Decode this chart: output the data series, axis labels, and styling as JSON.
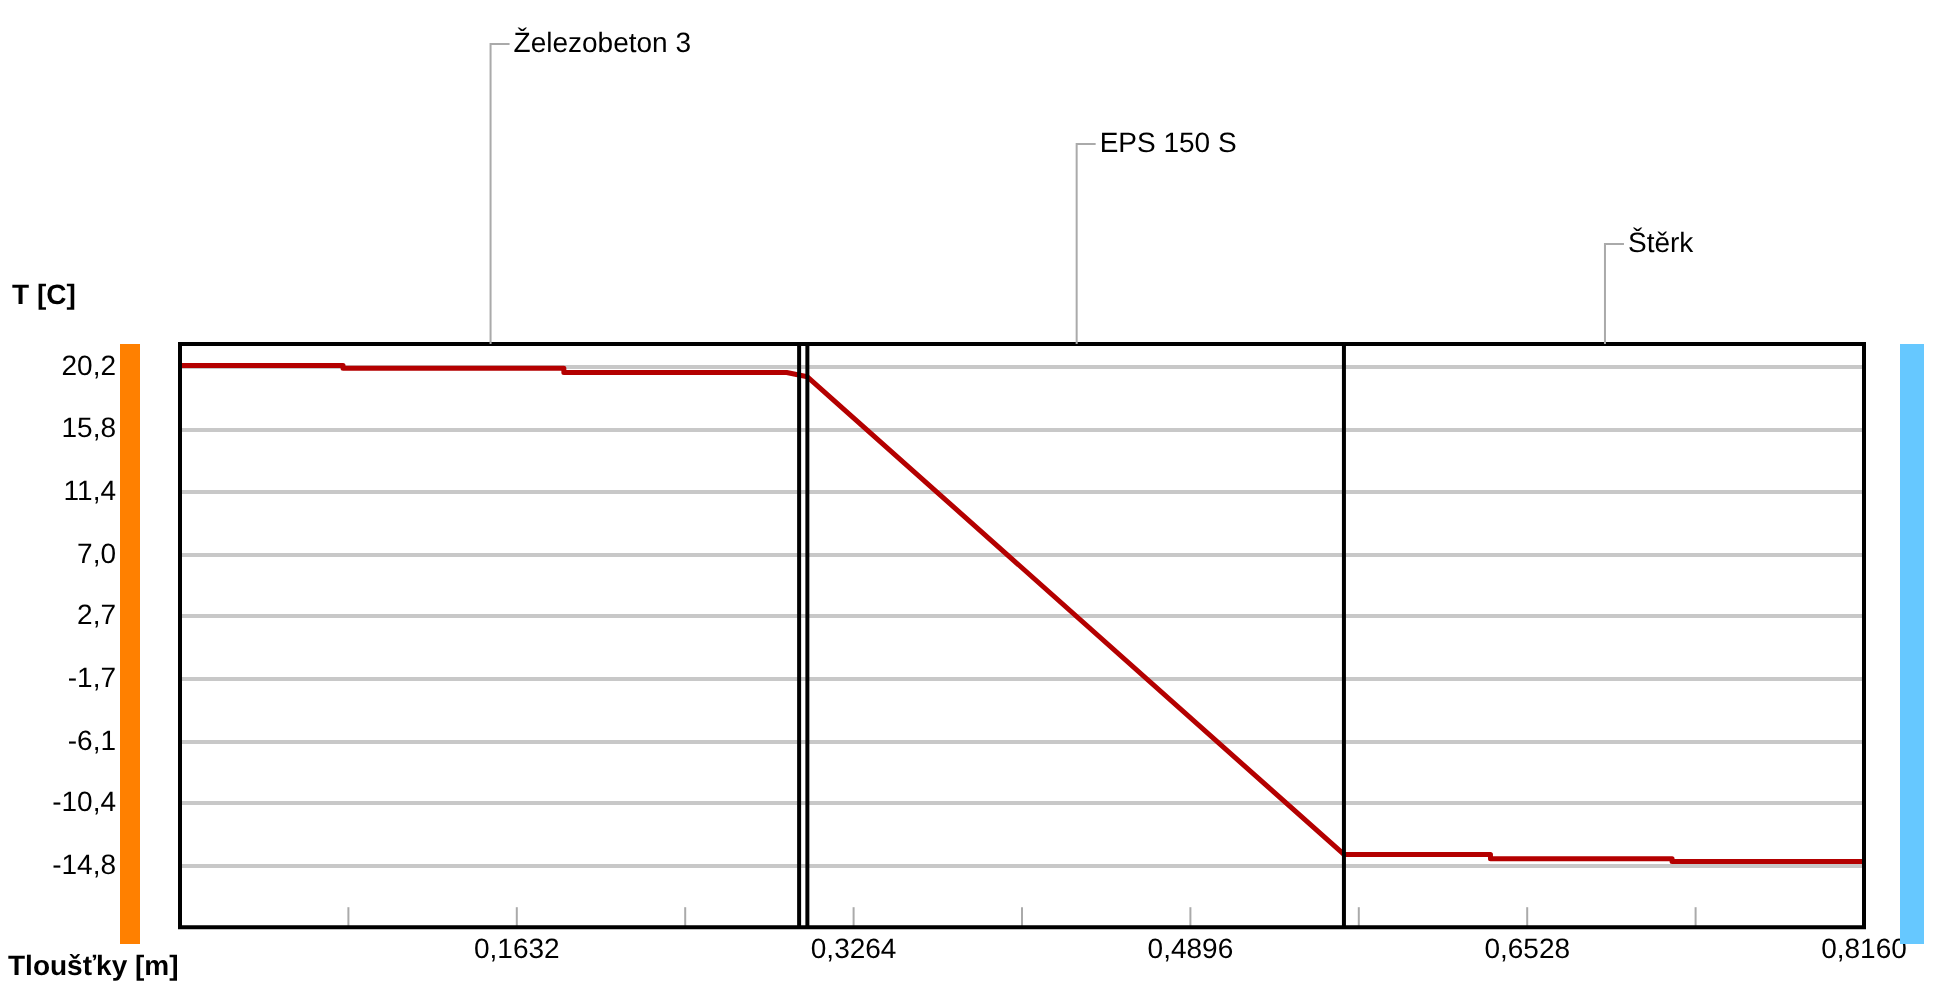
{
  "chart_data": {
    "type": "line",
    "xlabel": "Tloušťky [m]",
    "ylabel": "T [C]",
    "x": [
      0,
      0.079,
      0.079,
      0.186,
      0.186,
      0.294,
      0.304,
      0.564,
      0.635,
      0.635,
      0.723,
      0.723,
      0.816
    ],
    "series": [
      {
        "color": "#b40000",
        "values": [
          20.3,
          20.3,
          20.1,
          20.1,
          19.8,
          19.8,
          19.5,
          -14.0,
          -14.0,
          -14.3,
          -14.3,
          -14.5,
          -14.5
        ]
      }
    ],
    "xlim": [
      0,
      0.816
    ],
    "xticks": [
      {
        "value": 0.0816,
        "label": null
      },
      {
        "value": 0.1632,
        "label": "0,1632"
      },
      {
        "value": 0.2448,
        "label": null
      },
      {
        "value": 0.3264,
        "label": "0,3264"
      },
      {
        "value": 0.408,
        "label": null
      },
      {
        "value": 0.4896,
        "label": "0,4896"
      },
      {
        "value": 0.5712,
        "label": null
      },
      {
        "value": 0.6528,
        "label": "0,6528"
      },
      {
        "value": 0.7344,
        "label": null
      },
      {
        "value": 0.816,
        "label": "0,8160"
      }
    ],
    "ylim": [
      -19.1,
      21.8
    ],
    "yticks": [
      {
        "value": 20.2,
        "label": "20,2"
      },
      {
        "value": 15.8,
        "label": "15,8"
      },
      {
        "value": 11.4,
        "label": "11,4"
      },
      {
        "value": 7.0,
        "label": "7,0"
      },
      {
        "value": 2.7,
        "label": "2,7"
      },
      {
        "value": -1.7,
        "label": "-1,7"
      },
      {
        "value": -6.1,
        "label": "-6,1"
      },
      {
        "value": -10.4,
        "label": "-10,4"
      },
      {
        "value": -14.8,
        "label": "-14,8"
      }
    ],
    "ref_lines": [
      {
        "axis": "x",
        "value": 0.3,
        "color": "#000000"
      },
      {
        "axis": "x",
        "value": 0.304,
        "color": "#000000"
      },
      {
        "axis": "x",
        "value": 0.564,
        "color": "#000000"
      }
    ],
    "annotations": [
      "Železobeton 3",
      "EPS 150 S",
      "Štěrk"
    ],
    "grid": "y",
    "legend": false,
    "marker": "none",
    "line_style": "solid"
  }
}
